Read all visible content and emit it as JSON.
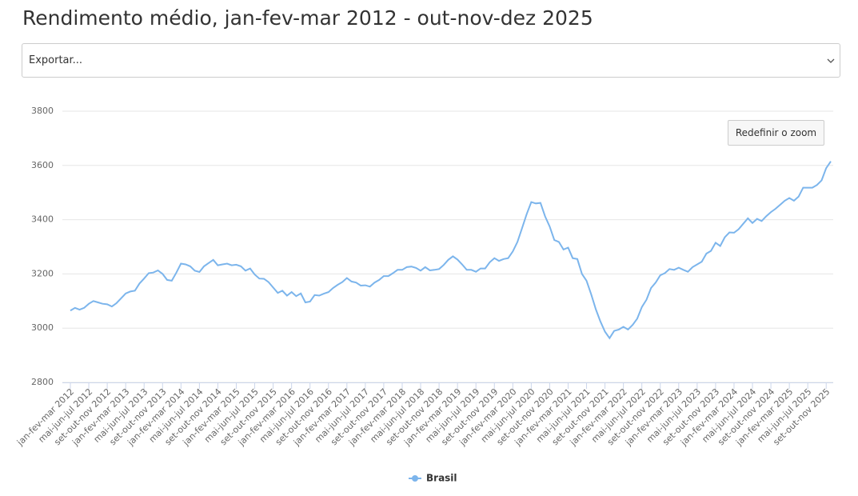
{
  "chart_data": {
    "type": "line",
    "title": "Rendimento médio, jan-fev-mar 2012 - out-nov-dez 2025",
    "categories": [
      "jan-fev-mar 2012",
      null,
      null,
      null,
      "mai-jun-jul 2012",
      null,
      null,
      null,
      "set-out-nov 2012",
      null,
      null,
      null,
      "jan-fev-mar 2013",
      null,
      null,
      null,
      "mai-jun-jul 2013",
      null,
      null,
      null,
      "set-out-nov 2013",
      null,
      null,
      null,
      "jan-fev-mar 2014",
      null,
      null,
      null,
      "mai-jun-jul 2014",
      null,
      null,
      null,
      "set-out-nov 2014",
      null,
      null,
      null,
      "jan-fev-mar 2015",
      null,
      null,
      null,
      "mai-jun-jul 2015",
      null,
      null,
      null,
      "set-out-nov 2015",
      null,
      null,
      null,
      "jan-fev-mar 2016",
      null,
      null,
      null,
      "mai-jun-jul 2016",
      null,
      null,
      null,
      "set-out-nov 2016",
      null,
      null,
      null,
      "jan-fev-mar 2017",
      null,
      null,
      null,
      "mai-jun-jul 2017",
      null,
      null,
      null,
      "set-out-nov 2017",
      null,
      null,
      null,
      "jan-fev-mar 2018",
      null,
      null,
      null,
      "mai-jun-jul 2018",
      null,
      null,
      null,
      "set-out-nov 2018",
      null,
      null,
      null,
      "jan-fev-mar 2019",
      null,
      null,
      null,
      "mai-jun-jul 2019",
      null,
      null,
      null,
      "set-out-nov 2019",
      null,
      null,
      null,
      "jan-fev-mar 2020",
      null,
      null,
      null,
      "mai-jun-jul 2020",
      null,
      null,
      null,
      "set-out-nov 2020",
      null,
      null,
      null,
      "jan-fev-mar 2021",
      null,
      null,
      null,
      "mai-jun-jul 2021",
      null,
      null,
      null,
      "set-out-nov 2021",
      null,
      null,
      null,
      "jan-fev-mar 2022",
      null,
      null,
      null,
      "mai-jun-jul 2022",
      null,
      null,
      null,
      "set-out-nov 2022",
      null,
      null,
      null,
      "jan-fev-mar 2023",
      null,
      null,
      null,
      "mai-jun-jul 2023",
      null,
      null,
      null,
      "set-out-nov 2023",
      null,
      null,
      null,
      "jan-fev-mar 2024",
      null,
      null,
      null,
      "mai-jun-jul 2024",
      null,
      null,
      null,
      "set-out-nov 2024",
      null,
      null,
      null,
      "jan-fev-mar 2025",
      null,
      null,
      null,
      "mai-jun-jul 2025",
      null,
      null,
      null,
      "set-out-nov 2025",
      null
    ],
    "series": [
      {
        "name": "Brasil",
        "color": "#7cb5ec",
        "values": [
          3065,
          3075,
          3068,
          3075,
          3090,
          3100,
          3095,
          3090,
          3088,
          3080,
          3092,
          3110,
          3128,
          3135,
          3138,
          3165,
          3183,
          3203,
          3205,
          3213,
          3200,
          3178,
          3175,
          3205,
          3238,
          3235,
          3228,
          3212,
          3207,
          3228,
          3240,
          3252,
          3232,
          3235,
          3238,
          3232,
          3234,
          3228,
          3212,
          3220,
          3198,
          3183,
          3182,
          3170,
          3150,
          3130,
          3138,
          3120,
          3133,
          3118,
          3128,
          3095,
          3098,
          3122,
          3120,
          3127,
          3133,
          3148,
          3160,
          3170,
          3185,
          3172,
          3168,
          3157,
          3158,
          3153,
          3168,
          3178,
          3192,
          3192,
          3203,
          3215,
          3215,
          3225,
          3227,
          3222,
          3212,
          3225,
          3213,
          3215,
          3218,
          3233,
          3252,
          3265,
          3253,
          3235,
          3215,
          3215,
          3208,
          3220,
          3220,
          3243,
          3258,
          3248,
          3255,
          3258,
          3283,
          3318,
          3368,
          3420,
          3465,
          3460,
          3462,
          3412,
          3375,
          3325,
          3318,
          3290,
          3297,
          3258,
          3255,
          3200,
          3175,
          3125,
          3070,
          3025,
          2987,
          2963,
          2990,
          2995,
          3005,
          2995,
          3012,
          3035,
          3078,
          3105,
          3148,
          3168,
          3195,
          3203,
          3218,
          3215,
          3223,
          3215,
          3208,
          3225,
          3235,
          3245,
          3275,
          3285,
          3315,
          3303,
          3335,
          3353,
          3352,
          3365,
          3385,
          3405,
          3388,
          3403,
          3395,
          3413,
          3428,
          3440,
          3455,
          3470,
          3480,
          3470,
          3485,
          3518,
          3518,
          3518,
          3528,
          3545,
          3590,
          3615
        ]
      }
    ],
    "ylim": [
      2800,
      3800
    ],
    "yticks": [
      2800,
      3000,
      3200,
      3400,
      3600,
      3800
    ],
    "grid": true
  },
  "ui": {
    "export_select": "Exportar...",
    "reset_zoom": "Redefinir o zoom"
  }
}
